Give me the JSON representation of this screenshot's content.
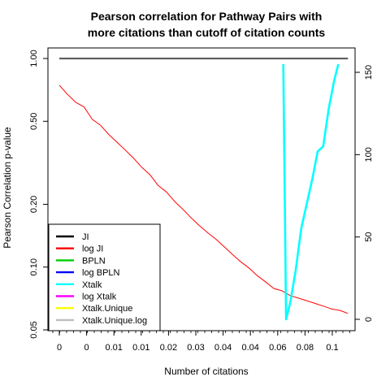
{
  "chart_data": {
    "type": "line",
    "title": [
      "Pearson correlation for Pathway Pairs with",
      "more citations than cutoff of citation counts"
    ],
    "xlabel": "Number of citations",
    "ylabel": "Pearson Correlation p-value",
    "x_tick_labels": [
      "0",
      "0",
      "0.01",
      "0.01",
      "0.02",
      "0.03",
      "0.04",
      "0.04",
      "0.06",
      "0.08",
      "0.1"
    ],
    "xlim": [
      0,
      0.107
    ],
    "ylim_left": [
      0.05,
      1.0
    ],
    "left_scale": "log",
    "left_ticks": [
      {
        "value": 1.0,
        "label": "1.00"
      },
      {
        "value": 0.5,
        "label": "0.50"
      },
      {
        "value": 0.2,
        "label": "0.20"
      },
      {
        "value": 0.1,
        "label": "0.10"
      },
      {
        "value": 0.05,
        "label": "0.05"
      }
    ],
    "ylim_right": [
      0,
      163
    ],
    "right_ticks": [
      0,
      50,
      100,
      150
    ],
    "legend_position": "bottom-left",
    "legend": [
      {
        "name": "JI",
        "color": "#000000"
      },
      {
        "name": "log JI",
        "color": "#ff0000"
      },
      {
        "name": "BPLN",
        "color": "#00cd00"
      },
      {
        "name": "log BPLN",
        "color": "#0000ff"
      },
      {
        "name": "Xtalk",
        "color": "#00ffff"
      },
      {
        "name": "log Xtalk",
        "color": "#ff00ff"
      },
      {
        "name": "Xtalk.Unique",
        "color": "#ffff00"
      },
      {
        "name": "Xtalk.Unique.log",
        "color": "#bebebe"
      }
    ],
    "series": [
      {
        "name": "log JI",
        "axis": "left",
        "color": "#ff0000",
        "x": [
          0,
          0.003,
          0.006,
          0.009,
          0.012,
          0.015,
          0.018,
          0.021,
          0.024,
          0.027,
          0.03,
          0.033,
          0.036,
          0.039,
          0.042,
          0.045,
          0.048,
          0.051,
          0.054,
          0.057,
          0.06,
          0.063,
          0.066,
          0.069,
          0.072,
          0.075,
          0.078,
          0.081,
          0.084,
          0.087,
          0.09,
          0.093,
          0.096,
          0.099,
          0.102,
          0.105
        ],
        "y": [
          0.745,
          0.673,
          0.616,
          0.586,
          0.511,
          0.479,
          0.432,
          0.397,
          0.364,
          0.333,
          0.301,
          0.277,
          0.246,
          0.229,
          0.206,
          0.189,
          0.172,
          0.158,
          0.146,
          0.136,
          0.125,
          0.115,
          0.106,
          0.099,
          0.091,
          0.085,
          0.079,
          0.077,
          0.073,
          0.071,
          0.069,
          0.067,
          0.065,
          0.063,
          0.062,
          0.06
        ]
      },
      {
        "name": "Xtalk",
        "axis": "right",
        "color": "#00ffff",
        "x": [
          0.0815,
          0.0825,
          0.084,
          0.086,
          0.088,
          0.09,
          0.092,
          0.094,
          0.096,
          0.098,
          0.1,
          0.1015
        ],
        "y": [
          155,
          0,
          10,
          30,
          55,
          70,
          85,
          102,
          105,
          128,
          145,
          155
        ]
      },
      {
        "name": "Xtalk.Unique.log",
        "axis": "left",
        "color": "#bebebe",
        "x": [
          0,
          0.105
        ],
        "y": [
          1.0,
          1.0
        ]
      },
      {
        "name": "JI",
        "axis": "left",
        "color": "#000000",
        "x": [
          0,
          0.105
        ],
        "y": [
          1.0,
          1.0
        ]
      }
    ]
  }
}
